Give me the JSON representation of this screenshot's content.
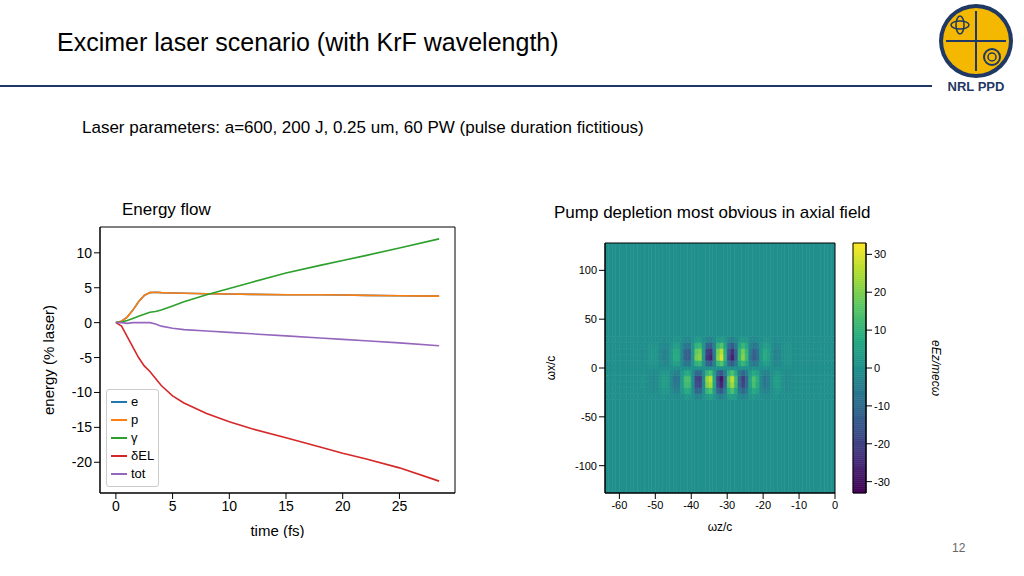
{
  "header": {
    "title": "Excimer laser scenario (with KrF wavelength)",
    "subtitle": "Laser parameters: a=600, 200 J, 0.25 um, 60 PW (pulse duration fictitious)",
    "logo_text": "NRL PPD",
    "page_number": "12"
  },
  "chart_data": [
    {
      "type": "line",
      "title": "Energy flow",
      "x_label": "time (fs)",
      "y_label": "energy (% laser)",
      "x": [
        0,
        0.5,
        1,
        1.5,
        2,
        2.5,
        3,
        3.5,
        4,
        5,
        6,
        8,
        10,
        12,
        15,
        18,
        20,
        22,
        25,
        28.5
      ],
      "series": [
        {
          "name": "e",
          "color": "#1f77b4",
          "values": [
            0,
            0.2,
            0.8,
            1.8,
            3,
            3.9,
            4.3,
            4.35,
            4.3,
            4.25,
            4.2,
            4.15,
            4.1,
            4.05,
            4,
            4,
            3.95,
            3.9,
            3.85,
            3.8
          ]
        },
        {
          "name": "p",
          "color": "#ff7f0e",
          "values": [
            0,
            0.2,
            0.8,
            1.8,
            3,
            3.9,
            4.3,
            4.35,
            4.3,
            4.25,
            4.2,
            4.15,
            4.1,
            4.05,
            4,
            4,
            3.95,
            3.9,
            3.85,
            3.8
          ]
        },
        {
          "name": "γ",
          "color": "#2ca02c",
          "values": [
            0,
            0.1,
            0.3,
            0.6,
            0.9,
            1.2,
            1.5,
            1.6,
            1.8,
            2.4,
            3,
            4,
            4.9,
            5.8,
            7.1,
            8.2,
            8.9,
            9.6,
            10.7,
            12
          ]
        },
        {
          "name": "δEL",
          "color": "#d62728",
          "values": [
            0,
            -0.5,
            -2,
            -3.5,
            -5,
            -6.2,
            -7,
            -8,
            -9,
            -10.5,
            -11.5,
            -13,
            -14.2,
            -15.2,
            -16.5,
            -17.8,
            -18.7,
            -19.5,
            -20.8,
            -22.7
          ]
        },
        {
          "name": "tot",
          "color": "#9467bd",
          "values": [
            0,
            0,
            -0.1,
            0,
            0,
            0,
            0,
            -0.2,
            -0.5,
            -0.8,
            -1,
            -1.2,
            -1.4,
            -1.6,
            -1.9,
            -2.2,
            -2.4,
            -2.6,
            -2.9,
            -3.3
          ]
        }
      ],
      "xlim": [
        -1.4,
        29.9
      ],
      "ylim": [
        -24.4,
        13.7
      ],
      "xticks": [
        0,
        5,
        10,
        15,
        20,
        25
      ],
      "yticks": [
        -20,
        -15,
        -10,
        -5,
        0,
        5,
        10
      ],
      "legend": "lower left",
      "grid": false
    },
    {
      "type": "heatmap",
      "title": "Pump depletion most obvious in axial field",
      "x_label": "ωz/c",
      "y_label": "ωx/c",
      "colorbar_label": "eEz/mecω",
      "x_edges": [
        -64,
        -63,
        -62,
        -61,
        -60,
        -59,
        -58,
        -57,
        -56,
        -55,
        -54,
        -53,
        -52,
        -51,
        -50,
        -49,
        -48,
        -47,
        -46,
        -45,
        -44,
        -43,
        -42,
        -41,
        -40,
        -39,
        -38,
        -37,
        -36,
        -35,
        -34,
        -33,
        -32,
        -31,
        -30,
        -29,
        -28,
        -27,
        -26,
        -25,
        -24,
        -23,
        -22,
        -21,
        -20,
        -19,
        -18,
        -17,
        -16,
        -15,
        -14,
        -13,
        -12,
        -11,
        -10,
        -9,
        -8,
        -7,
        -6,
        -5,
        -4,
        -3,
        -2,
        -1,
        0
      ],
      "y_edges": [
        -128,
        -32,
        -26,
        -20,
        -14,
        -8,
        -2,
        2,
        8,
        14,
        20,
        26,
        32,
        128
      ],
      "values": [
        [
          0,
          0,
          0,
          0,
          0,
          0,
          0,
          0,
          0,
          0,
          0,
          0,
          0,
          0,
          0,
          0,
          0,
          0,
          0,
          0,
          0,
          0,
          0,
          0,
          0,
          0,
          0,
          0,
          0,
          0,
          0,
          0,
          0,
          0,
          0,
          0,
          0,
          0,
          0,
          0,
          0,
          0,
          0,
          0,
          0,
          0,
          0,
          0,
          0,
          0,
          0,
          0,
          0,
          0,
          0,
          0,
          0,
          0,
          0,
          0,
          0,
          0,
          0,
          0
        ],
        [
          0,
          0,
          0,
          0,
          0,
          0,
          0,
          0,
          0,
          0,
          0,
          0,
          0,
          0,
          0,
          0,
          1,
          0,
          0,
          -1,
          -1,
          0,
          2,
          2,
          0,
          -3,
          -3,
          0,
          3,
          4,
          1,
          -3,
          -4,
          -2,
          3,
          4,
          2,
          -2,
          -3,
          -2,
          1,
          2,
          1,
          0,
          -1,
          -1,
          0,
          1,
          0,
          0,
          0,
          0,
          0,
          0,
          0,
          0,
          0,
          0,
          0,
          0,
          0,
          0,
          0,
          0
        ],
        [
          0,
          0,
          0,
          0,
          0,
          0,
          0,
          0,
          0,
          0,
          0,
          0,
          -1,
          -1,
          -1,
          1,
          2,
          2,
          -1,
          -4,
          -4,
          2,
          7,
          7,
          -1,
          -10,
          -11,
          -1,
          11,
          14,
          3,
          -11,
          -15,
          -5,
          9,
          14,
          6,
          -6,
          -11,
          -6,
          3,
          7,
          5,
          -1,
          -4,
          -3,
          0,
          2,
          2,
          0,
          -1,
          -1,
          0,
          0,
          0,
          0,
          0,
          0,
          0,
          0,
          0,
          0,
          0,
          0
        ],
        [
          0,
          0,
          0,
          0,
          0,
          0,
          0,
          0,
          0,
          0,
          1,
          0,
          -1,
          -2,
          -1,
          2,
          4,
          3,
          -2,
          -7,
          -6,
          3,
          12,
          12,
          -1,
          -17,
          -19,
          -2,
          20,
          24,
          5,
          -19,
          -26,
          -9,
          15,
          24,
          11,
          -10,
          -19,
          -10,
          5,
          13,
          8,
          -2,
          -7,
          -5,
          0,
          4,
          3,
          0,
          -1,
          -1,
          0,
          0,
          0,
          0,
          0,
          0,
          0,
          0,
          0,
          0,
          0,
          0
        ],
        [
          0,
          0,
          0,
          0,
          0,
          0,
          0,
          0,
          0,
          0,
          1,
          0,
          -1,
          -2,
          -1,
          2,
          4,
          3,
          -2,
          -8,
          -7,
          3,
          13,
          13,
          -1,
          -19,
          -21,
          -2,
          22,
          27,
          6,
          -21,
          -29,
          -10,
          17,
          27,
          12,
          -11,
          -21,
          -11,
          6,
          14,
          9,
          -2,
          -8,
          -5,
          0,
          4,
          3,
          0,
          -1,
          -1,
          0,
          0,
          0,
          0,
          0,
          0,
          0,
          0,
          0,
          0,
          0,
          0
        ],
        [
          0,
          0,
          0,
          0,
          0,
          0,
          0,
          0,
          0,
          0,
          0,
          0,
          -1,
          -1,
          -1,
          1,
          2,
          2,
          -1,
          -4,
          -4,
          2,
          7,
          7,
          -1,
          -10,
          -11,
          -1,
          11,
          14,
          3,
          -11,
          -15,
          -5,
          9,
          14,
          6,
          -6,
          -11,
          -6,
          3,
          7,
          5,
          -1,
          -4,
          -3,
          0,
          2,
          2,
          0,
          -1,
          -1,
          0,
          0,
          0,
          0,
          0,
          0,
          0,
          0,
          0,
          0,
          0,
          0
        ],
        [
          0,
          0,
          0,
          0,
          0,
          0,
          0,
          0,
          0,
          0,
          0,
          0,
          0,
          0,
          0,
          0,
          0,
          0,
          0,
          0,
          0,
          0,
          0,
          0,
          0,
          0,
          0,
          0,
          0,
          0,
          0,
          0,
          0,
          0,
          0,
          0,
          0,
          0,
          0,
          0,
          0,
          0,
          0,
          0,
          0,
          0,
          0,
          0,
          0,
          0,
          0,
          0,
          0,
          0,
          0,
          0,
          0,
          0,
          0,
          0,
          0,
          0,
          0,
          0
        ],
        [
          0,
          0,
          0,
          0,
          0,
          0,
          0,
          0,
          0,
          0,
          0,
          0,
          1,
          1,
          1,
          -1,
          -2,
          -2,
          1,
          4,
          4,
          -2,
          -7,
          -7,
          1,
          10,
          11,
          1,
          -11,
          -14,
          -3,
          11,
          15,
          5,
          -9,
          -14,
          -6,
          6,
          11,
          6,
          -3,
          -7,
          -5,
          1,
          4,
          3,
          0,
          -2,
          -2,
          0,
          1,
          1,
          0,
          0,
          0,
          0,
          0,
          0,
          0,
          0,
          0,
          0,
          0,
          0
        ],
        [
          0,
          0,
          0,
          0,
          0,
          0,
          0,
          0,
          0,
          0,
          -1,
          0,
          1,
          2,
          1,
          -2,
          -4,
          -3,
          2,
          8,
          7,
          -3,
          -13,
          -13,
          1,
          19,
          21,
          2,
          -22,
          -27,
          -6,
          21,
          29,
          10,
          -17,
          -27,
          -12,
          11,
          21,
          11,
          -6,
          -14,
          -9,
          2,
          8,
          5,
          0,
          -4,
          -3,
          0,
          1,
          1,
          0,
          0,
          0,
          0,
          0,
          0,
          0,
          0,
          0,
          0,
          0,
          0
        ],
        [
          0,
          0,
          0,
          0,
          0,
          0,
          0,
          0,
          0,
          0,
          -1,
          0,
          1,
          2,
          1,
          -2,
          -4,
          -3,
          2,
          7,
          6,
          -3,
          -12,
          -12,
          1,
          17,
          19,
          2,
          -20,
          -24,
          -5,
          19,
          26,
          9,
          -15,
          -24,
          -11,
          10,
          19,
          10,
          -5,
          -13,
          -8,
          2,
          7,
          5,
          0,
          -4,
          -3,
          0,
          1,
          1,
          0,
          0,
          0,
          0,
          0,
          0,
          0,
          0,
          0,
          0,
          0,
          0
        ],
        [
          0,
          0,
          0,
          0,
          0,
          0,
          0,
          0,
          0,
          0,
          0,
          0,
          1,
          1,
          1,
          -1,
          -2,
          -2,
          1,
          4,
          4,
          -2,
          -7,
          -7,
          1,
          10,
          11,
          1,
          -11,
          -14,
          -3,
          11,
          15,
          5,
          -9,
          -14,
          -6,
          6,
          11,
          6,
          -3,
          -7,
          -5,
          1,
          4,
          3,
          0,
          -2,
          -2,
          0,
          1,
          1,
          0,
          0,
          0,
          0,
          0,
          0,
          0,
          0,
          0,
          0,
          0,
          0
        ],
        [
          0,
          0,
          0,
          0,
          0,
          0,
          0,
          0,
          0,
          0,
          0,
          0,
          0,
          0,
          0,
          0,
          -1,
          0,
          0,
          1,
          1,
          0,
          -2,
          -2,
          0,
          3,
          3,
          0,
          -3,
          -4,
          -1,
          3,
          4,
          2,
          -3,
          -4,
          -2,
          2,
          3,
          2,
          -1,
          -2,
          -1,
          0,
          1,
          1,
          0,
          -1,
          0,
          0,
          0,
          0,
          0,
          0,
          0,
          0,
          0,
          0,
          0,
          0,
          0,
          0,
          0,
          0
        ],
        [
          0,
          0,
          0,
          0,
          0,
          0,
          0,
          0,
          0,
          0,
          0,
          0,
          0,
          0,
          0,
          0,
          0,
          0,
          0,
          0,
          0,
          0,
          0,
          0,
          0,
          0,
          0,
          0,
          0,
          0,
          0,
          0,
          0,
          0,
          0,
          0,
          0,
          0,
          0,
          0,
          0,
          0,
          0,
          0,
          0,
          0,
          0,
          0,
          0,
          0,
          0,
          0,
          0,
          0,
          0,
          0,
          0,
          0,
          0,
          0,
          0,
          0,
          0,
          0
        ]
      ],
      "xlim": [
        -64,
        0
      ],
      "ylim": [
        -128,
        128
      ],
      "xticks": [
        -60,
        -50,
        -40,
        -30,
        -20,
        -10,
        0
      ],
      "yticks": [
        -100,
        -50,
        0,
        50,
        100
      ],
      "colorbar_range": [
        -33,
        33
      ],
      "colorbar_ticks": [
        -30,
        -20,
        -10,
        0,
        10,
        20,
        30
      ]
    }
  ]
}
